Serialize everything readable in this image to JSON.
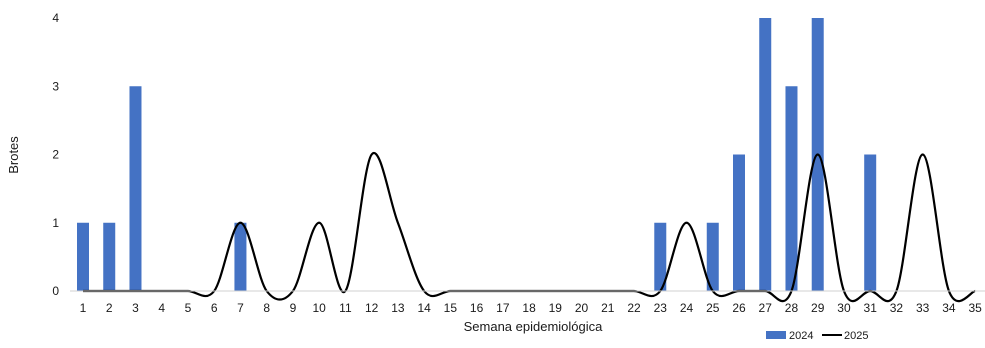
{
  "chart_data": {
    "type": "bar",
    "title": "",
    "xlabel": "Semana epidemiológica",
    "ylabel": "Brotes",
    "ylim": [
      0,
      4
    ],
    "yticks": [
      "0",
      "1",
      "2",
      "3",
      "4"
    ],
    "categories": [
      "1",
      "2",
      "3",
      "4",
      "5",
      "6",
      "7",
      "8",
      "9",
      "10",
      "11",
      "12",
      "13",
      "14",
      "15",
      "16",
      "17",
      "18",
      "19",
      "20",
      "21",
      "22",
      "23",
      "24",
      "25",
      "26",
      "27",
      "28",
      "29",
      "30",
      "31",
      "32",
      "33",
      "34",
      "35"
    ],
    "grid": false,
    "legend_position": "bottom-right",
    "series": [
      {
        "name": "2024",
        "kind": "bar",
        "color": "#4472c4",
        "values": [
          1,
          1,
          3,
          0,
          0,
          0,
          1,
          0,
          0,
          0,
          0,
          0,
          0,
          0,
          0,
          0,
          0,
          0,
          0,
          0,
          0,
          0,
          1,
          0,
          1,
          2,
          4,
          3,
          4,
          0,
          2,
          0,
          0,
          0,
          0
        ]
      },
      {
        "name": "2025",
        "kind": "line",
        "color": "#000000",
        "values": [
          0,
          0,
          0,
          0,
          0,
          0,
          1,
          0,
          0,
          1,
          0,
          2,
          1,
          0,
          0,
          0,
          0,
          0,
          0,
          0,
          0,
          0,
          0,
          1,
          0,
          0,
          0,
          0,
          2,
          0,
          0,
          0,
          2,
          0,
          0
        ]
      }
    ]
  }
}
